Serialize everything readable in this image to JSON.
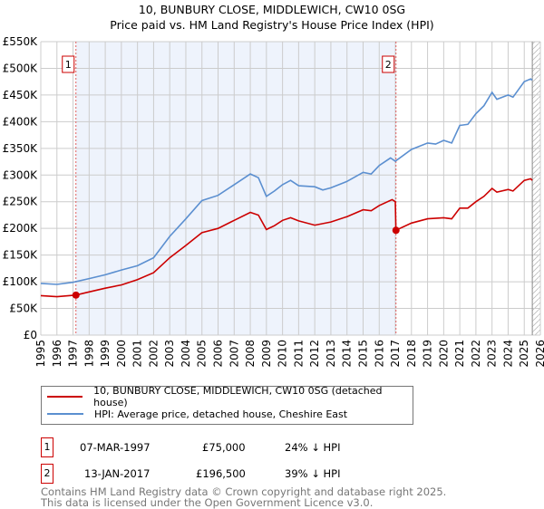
{
  "chart_data": {
    "type": "line",
    "title": "10, BUNBURY CLOSE, MIDDLEWICH, CW10 0SG",
    "subtitle": "Price paid vs. HM Land Registry's House Price Index (HPI)",
    "xlim": [
      1995,
      2026
    ],
    "ylim": [
      0,
      550000
    ],
    "y_ticks": [
      {
        "v": 0,
        "l": "£0"
      },
      {
        "v": 50000,
        "l": "£50K"
      },
      {
        "v": 100000,
        "l": "£100K"
      },
      {
        "v": 150000,
        "l": "£150K"
      },
      {
        "v": 200000,
        "l": "£200K"
      },
      {
        "v": 250000,
        "l": "£250K"
      },
      {
        "v": 300000,
        "l": "£300K"
      },
      {
        "v": 350000,
        "l": "£350K"
      },
      {
        "v": 400000,
        "l": "£400K"
      },
      {
        "v": 450000,
        "l": "£450K"
      },
      {
        "v": 500000,
        "l": "£500K"
      },
      {
        "v": 550000,
        "l": "£550K"
      }
    ],
    "x_ticks": [
      "1995",
      "1996",
      "1997",
      "1998",
      "1999",
      "2000",
      "2001",
      "2002",
      "2003",
      "2004",
      "2005",
      "2006",
      "2007",
      "2008",
      "2009",
      "2010",
      "2011",
      "2012",
      "2013",
      "2014",
      "2015",
      "2016",
      "2017",
      "2018",
      "2019",
      "2020",
      "2021",
      "2022",
      "2023",
      "2024",
      "2025",
      "2026"
    ],
    "grid": true,
    "shaded_range": [
      1997.18,
      2017.04
    ],
    "forecast_from": 2025.5,
    "series": [
      {
        "name": "10, BUNBURY CLOSE, MIDDLEWICH, CW10 0SG (detached house)",
        "color": "#cc0000",
        "x": [
          1995,
          1996,
          1997.18,
          1998,
          1999,
          2000,
          2001,
          2002,
          2003,
          2004,
          2005,
          2006,
          2007,
          2008,
          2008.5,
          2009,
          2009.5,
          2010,
          2010.5,
          2011,
          2012,
          2013,
          2014,
          2015,
          2015.5,
          2016,
          2016.8,
          2017.0,
          2017.04,
          2018,
          2019,
          2020,
          2020.5,
          2021,
          2021.5,
          2022,
          2022.5,
          2023,
          2023.3,
          2024,
          2024.3,
          2025,
          2025.4,
          2025.5
        ],
        "y": [
          74000,
          72000,
          75000,
          81000,
          88000,
          94000,
          104000,
          117000,
          145000,
          168000,
          192000,
          200000,
          215000,
          230000,
          225000,
          198000,
          205000,
          215000,
          220000,
          214000,
          206000,
          212000,
          222000,
          235000,
          233000,
          243000,
          254000,
          250000,
          196500,
          210000,
          218000,
          220000,
          218000,
          238000,
          238000,
          250000,
          260000,
          275000,
          268000,
          273000,
          270000,
          290000,
          293000,
          290000
        ]
      },
      {
        "name": "HPI: Average price, detached house, Cheshire East",
        "color": "#5b8fd0",
        "x": [
          1995,
          1996,
          1997,
          1998,
          1999,
          2000,
          2001,
          2002,
          2003,
          2004,
          2005,
          2006,
          2007,
          2008,
          2008.5,
          2009,
          2009.5,
          2010,
          2010.5,
          2011,
          2012,
          2012.5,
          2013,
          2014,
          2015,
          2015.5,
          2016,
          2016.7,
          2017,
          2018,
          2019,
          2019.5,
          2020,
          2020.5,
          2021,
          2021.5,
          2022,
          2022.5,
          2023,
          2023.3,
          2024,
          2024.3,
          2025,
          2025.4,
          2025.5
        ],
        "y": [
          97000,
          95000,
          99000,
          106000,
          113000,
          122000,
          130000,
          145000,
          185000,
          218000,
          252000,
          262000,
          282000,
          302000,
          295000,
          260000,
          270000,
          282000,
          290000,
          280000,
          278000,
          272000,
          276000,
          288000,
          305000,
          302000,
          318000,
          332000,
          326000,
          348000,
          360000,
          358000,
          365000,
          360000,
          393000,
          395000,
          415000,
          430000,
          455000,
          442000,
          450000,
          446000,
          475000,
          480000,
          478000
        ]
      }
    ],
    "sales": [
      {
        "label": "1",
        "x": 1997.18,
        "y": 75000
      },
      {
        "label": "2",
        "x": 2017.04,
        "y": 196500
      }
    ]
  },
  "transactions": [
    {
      "num": "1",
      "date": "07-MAR-1997",
      "price": "£75,000",
      "hpi": "24% ↓ HPI"
    },
    {
      "num": "2",
      "date": "13-JAN-2017",
      "price": "£196,500",
      "hpi": "39% ↓ HPI"
    }
  ],
  "footer": [
    "Contains HM Land Registry data © Crown copyright and database right 2025.",
    "This data is licensed under the Open Government Licence v3.0."
  ]
}
